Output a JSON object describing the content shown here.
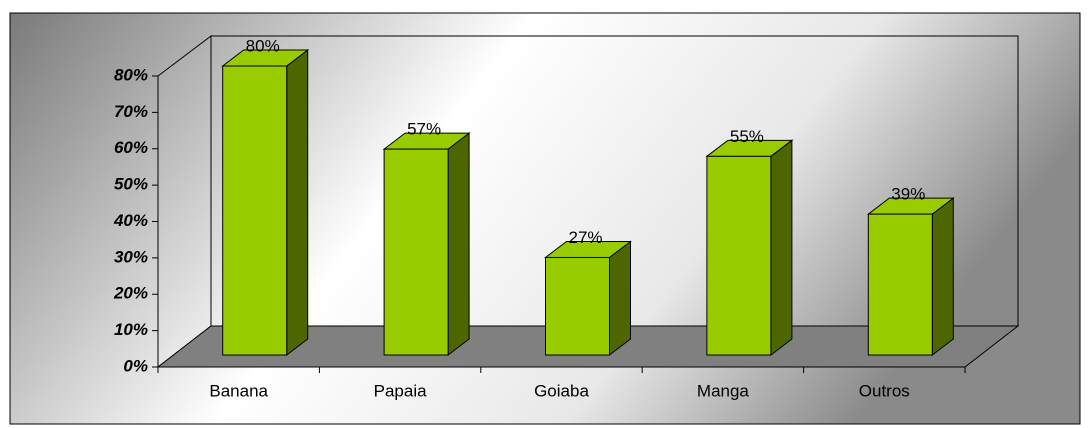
{
  "chart_data": {
    "type": "bar3d",
    "categories": [
      "Banana",
      "Papaia",
      "Goiaba",
      "Manga",
      "Outros"
    ],
    "values": [
      80,
      57,
      27,
      55,
      39
    ],
    "value_labels": [
      "80%",
      "57%",
      "27%",
      "55%",
      "39%"
    ],
    "color": "#99cc00",
    "side_color": "#4d6600",
    "ylim": [
      0,
      80
    ],
    "yticks": [
      {
        "value": 0,
        "label": "0%"
      },
      {
        "value": 10,
        "label": "10%"
      },
      {
        "value": 20,
        "label": "20%"
      },
      {
        "value": 30,
        "label": "30%"
      },
      {
        "value": 40,
        "label": "40%"
      },
      {
        "value": 50,
        "label": "50%"
      },
      {
        "value": 60,
        "label": "60%"
      },
      {
        "value": 70,
        "label": "70%"
      },
      {
        "value": 80,
        "label": "80%"
      }
    ]
  }
}
